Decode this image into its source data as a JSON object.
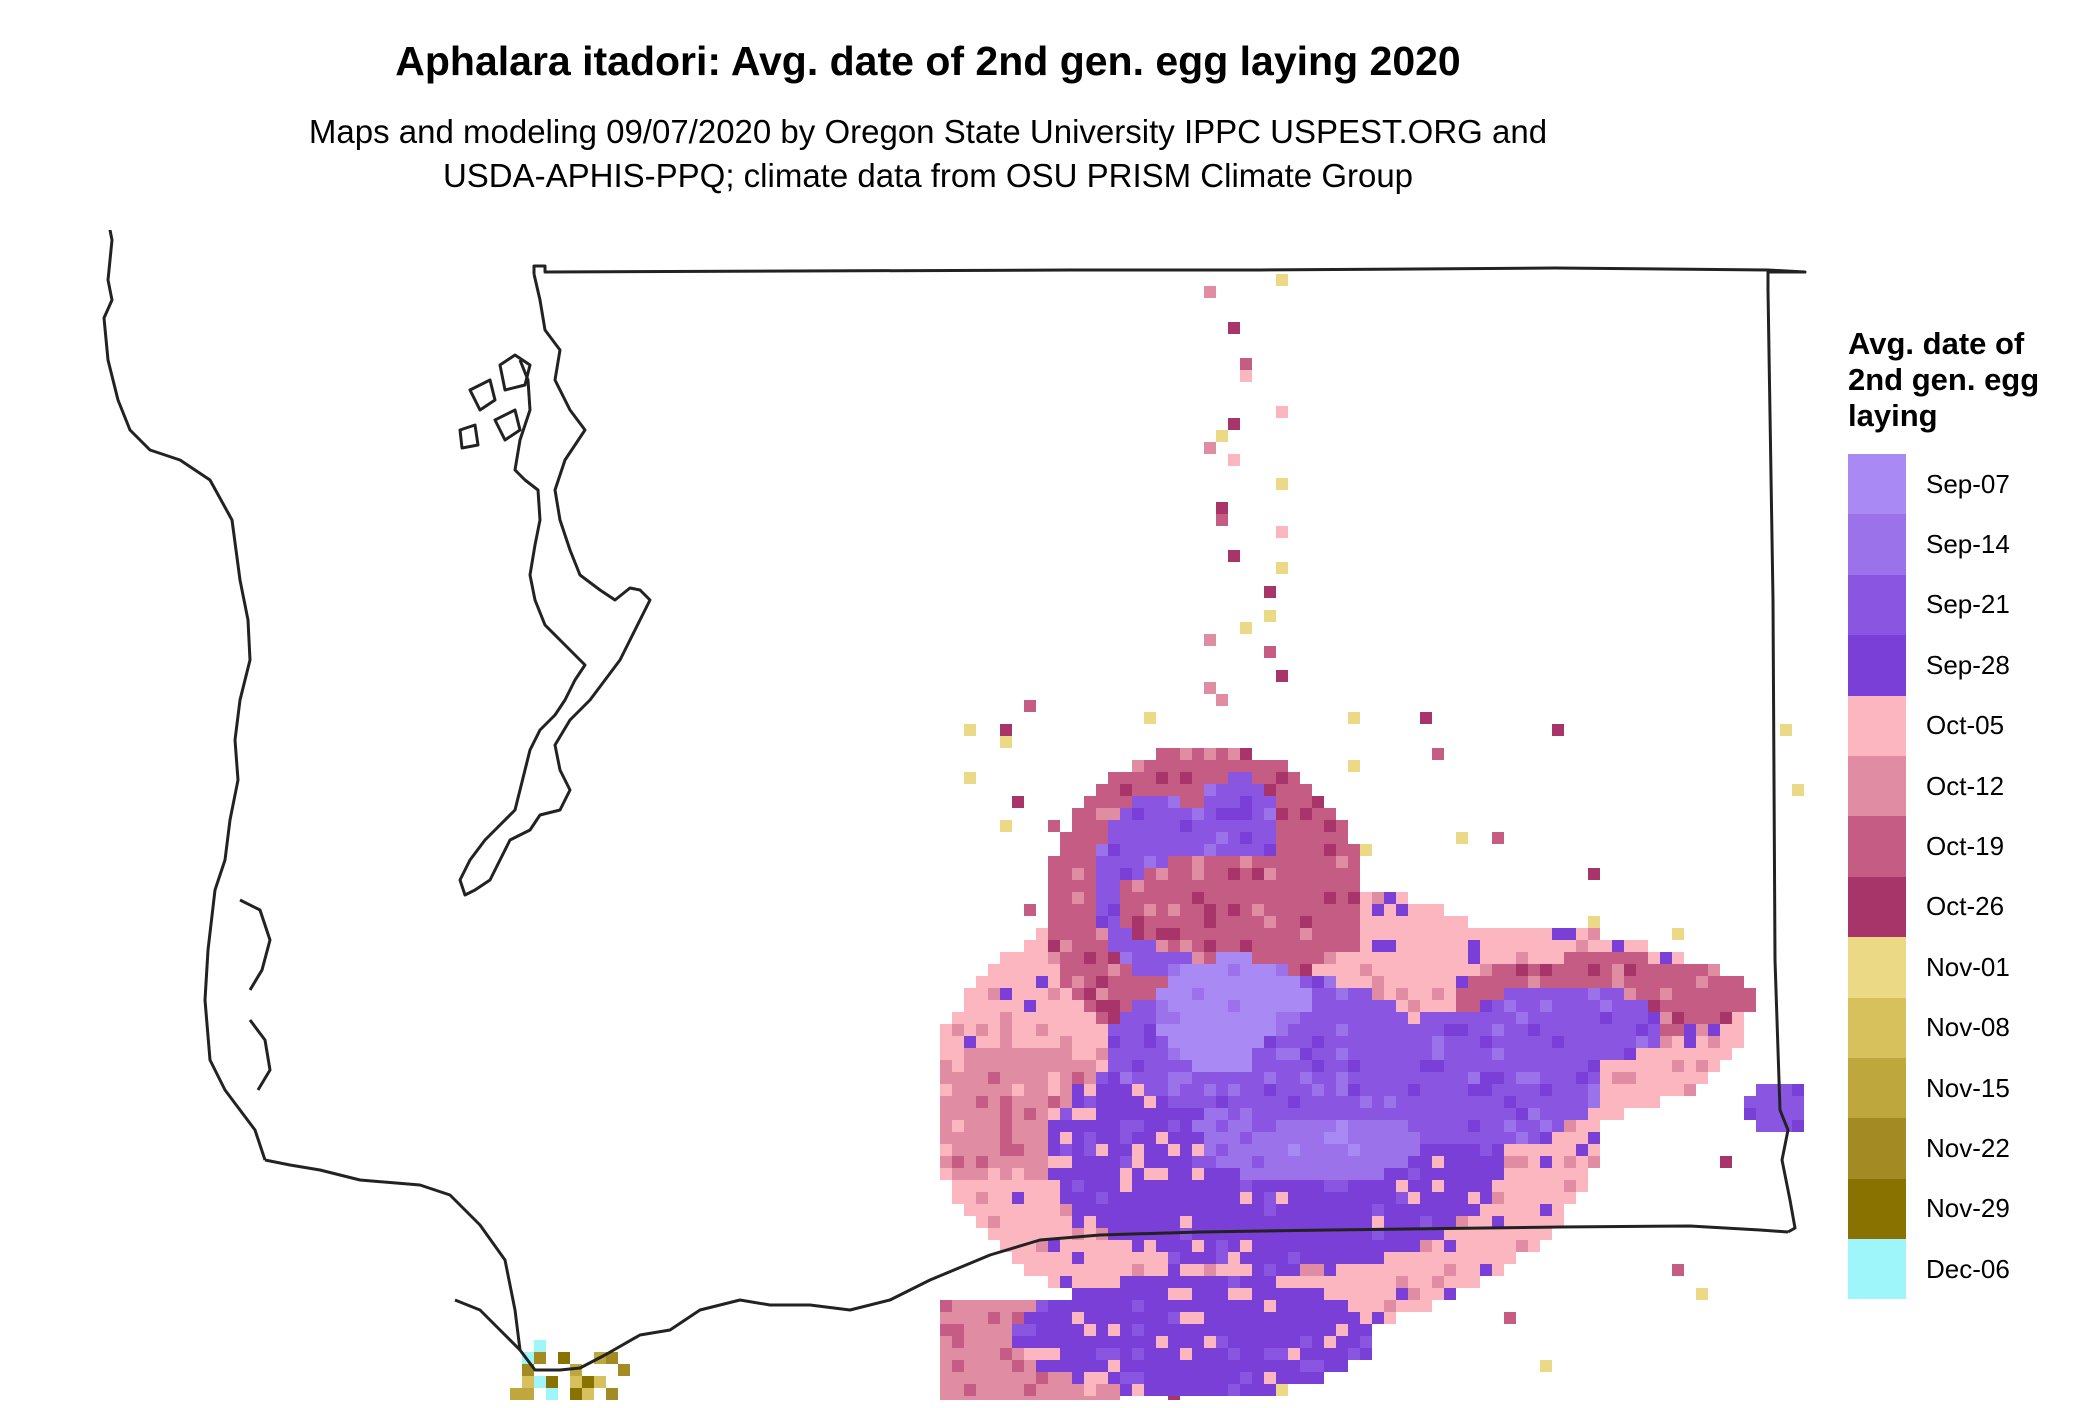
{
  "title": "Aphalara itadori: Avg. date of 2nd gen. egg laying 2020",
  "subtitle_line1": "Maps and modeling 09/07/2020 by Oregon State University IPPC USPEST.ORG and",
  "subtitle_line2": "USDA-APHIS-PPQ; climate data from OSU PRISM Climate Group",
  "legend": {
    "title": "Avg. date of\n2nd gen. egg\nlaying",
    "items": [
      {
        "label": "Sep-07",
        "color": "#a98af5"
      },
      {
        "label": "Sep-14",
        "color": "#9b72ea"
      },
      {
        "label": "Sep-21",
        "color": "#8a55e0"
      },
      {
        "label": "Sep-28",
        "color": "#7a3fd6"
      },
      {
        "label": "Oct-05",
        "color": "#fbb6c0"
      },
      {
        "label": "Oct-12",
        "color": "#e08ca2"
      },
      {
        "label": "Oct-19",
        "color": "#c45c84"
      },
      {
        "label": "Oct-26",
        "color": "#a8356a"
      },
      {
        "label": "Nov-01",
        "color": "#ecd985"
      },
      {
        "label": "Nov-08",
        "color": "#d6c15c"
      },
      {
        "label": "Nov-15",
        "color": "#bea83e"
      },
      {
        "label": "Nov-22",
        "color": "#a48a22"
      },
      {
        "label": "Nov-29",
        "color": "#8a7200"
      },
      {
        "label": "Dec-06",
        "color": "#9ff6fa"
      }
    ]
  },
  "colors": {
    "outline": "#222222"
  }
}
